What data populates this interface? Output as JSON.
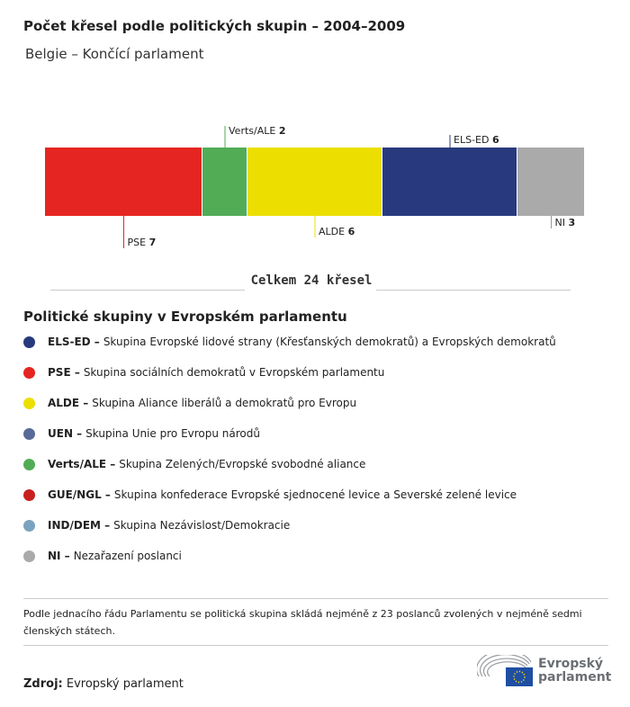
{
  "title": "Počet křesel podle politických skupin – 2004–2009",
  "subtitle": "Belgie – Končící parlament",
  "chart_data": {
    "type": "bar",
    "orientation": "stacked-horizontal",
    "categories": [
      "PSE",
      "Verts/ALE",
      "ALDE",
      "ELS-ED",
      "NI"
    ],
    "values": [
      7,
      2,
      6,
      6,
      3
    ],
    "colors": [
      "#e52521",
      "#52ac56",
      "#ecdf00",
      "#283a7d",
      "#aaaaaa"
    ],
    "label_position": [
      "below",
      "above",
      "below",
      "above",
      "below"
    ],
    "total_label": "Celkem 24 křesel"
  },
  "legend": {
    "title": "Politické skupiny v Evropském parlamentu",
    "items": [
      {
        "abbr": "ELS-ED –",
        "desc": "Skupina Evropské lidové strany (Křesťanských demokratů) a Evropských demokratů",
        "color": "#283a7d"
      },
      {
        "abbr": "PSE –",
        "desc": "Skupina sociálních demokratů v Evropském parlamentu",
        "color": "#e52521"
      },
      {
        "abbr": "ALDE –",
        "desc": "Skupina Aliance liberálů a demokratů pro Evropu",
        "color": "#ecdf00"
      },
      {
        "abbr": "UEN –",
        "desc": "Skupina Unie pro Evropu národů",
        "color": "#5a6a98"
      },
      {
        "abbr": "Verts/ALE –",
        "desc": "Skupina Zelených/Evropské svobodné aliance",
        "color": "#52ac56"
      },
      {
        "abbr": "GUE/NGL –",
        "desc": "Skupina konfederace Evropské sjednocené levice a Severské zelené levice",
        "color": "#c8201f"
      },
      {
        "abbr": "IND/DEM –",
        "desc": "Skupina Nezávislost/Demokracie",
        "color": "#7ba3c0"
      },
      {
        "abbr": "NI –",
        "desc": "Nezařazení poslanci",
        "color": "#aaaaaa"
      }
    ]
  },
  "note": "Podle jednacího řádu Parlamentu se politická skupina skládá nejméně z 23 poslanců zvolených v nejméně sedmi členských státech.",
  "source": {
    "label": "Zdroj:",
    "value": "Evropský parlament"
  },
  "logo": {
    "line1": "Evropský",
    "line2": "parlament"
  }
}
